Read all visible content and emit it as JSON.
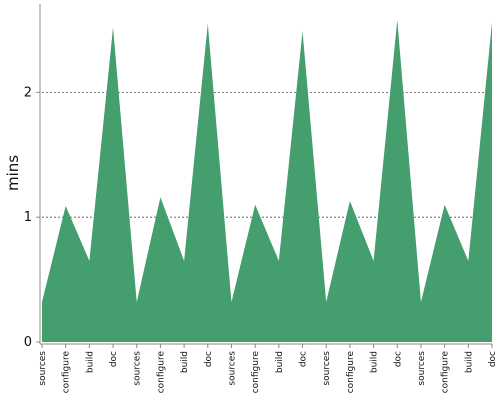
{
  "chart_data": {
    "type": "area",
    "title": "",
    "xlabel": "",
    "ylabel": "mins",
    "categories": [
      "sources",
      "configure",
      "build",
      "doc",
      "sources",
      "configure",
      "build",
      "doc",
      "sources",
      "configure",
      "build",
      "doc",
      "sources",
      "configure",
      "build",
      "doc",
      "sources",
      "configure",
      "build",
      "doc"
    ],
    "series": [
      {
        "values": [
          0.32,
          1.09,
          0.65,
          2.52,
          0.32,
          1.16,
          0.65,
          2.55,
          0.32,
          1.1,
          0.65,
          2.49,
          0.32,
          1.13,
          0.65,
          2.58,
          0.32,
          1.1,
          0.65,
          2.56
        ]
      }
    ],
    "ylim": [
      0,
      2.7
    ],
    "yticks": [
      0,
      1,
      2
    ],
    "grid": "horizontal dotted lines at y ticks",
    "legend": "none",
    "colors": {
      "fill": "#449e6e",
      "axis": "#888888",
      "grid": "#555555"
    }
  }
}
